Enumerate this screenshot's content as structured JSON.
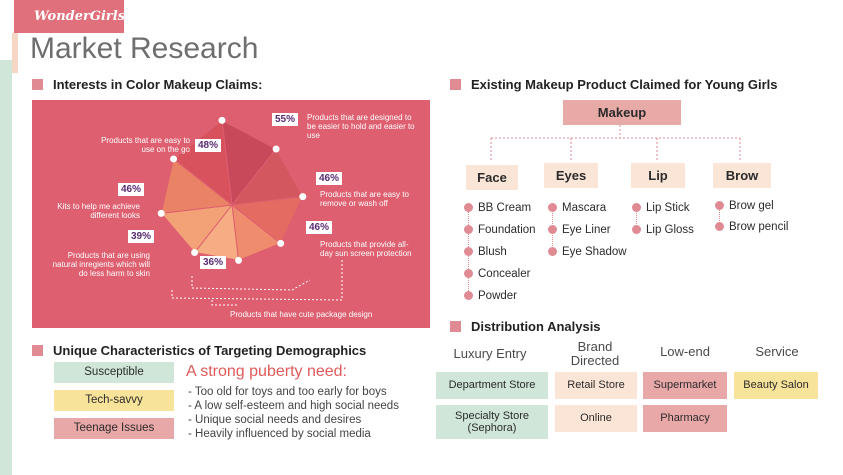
{
  "brand": "WonderGirls",
  "title": "Market Research",
  "interests": {
    "heading": "Interests in Color Makeup Claims:",
    "claims": [
      {
        "pct": "55%",
        "value": 55,
        "label": "Products that are designed to be easier to hold and easier to use"
      },
      {
        "pct": "46%",
        "value": 46,
        "label": "Products that are easy to remove or wash off"
      },
      {
        "pct": "46%",
        "value": 46,
        "label": "Products that provide all-day sun screen protection"
      },
      {
        "pct": "",
        "value": 40,
        "label": "Products that have cute package design"
      },
      {
        "pct": "36%",
        "value": 36,
        "label": ""
      },
      {
        "pct": "39%",
        "value": 39,
        "label": "Products that are using natural inregients which will do less harm to skin"
      },
      {
        "pct": "46%",
        "value": 46,
        "label": "Kits to help me achieve different looks"
      },
      {
        "pct": "48%",
        "value": 48,
        "label": "Products that are easy to use on the go"
      }
    ]
  },
  "existing": {
    "heading": "Existing Makeup Product Claimed for Young Girls",
    "root": "Makeup",
    "categories": [
      {
        "name": "Face",
        "items": [
          "BB Cream",
          "Foundation",
          "Blush",
          "Concealer",
          "Powder"
        ]
      },
      {
        "name": "Eyes",
        "items": [
          "Mascara",
          "Eye Liner",
          "Eye Shadow"
        ]
      },
      {
        "name": "Lip",
        "items": [
          "Lip Stick",
          "Lip Gloss"
        ]
      },
      {
        "name": "Brow",
        "items": [
          "Brow gel",
          "Brow pencil"
        ]
      }
    ]
  },
  "unique": {
    "heading": "Unique Characteristics of Targeting Demographics",
    "tags": [
      "Susceptible",
      "Tech-savvy",
      "Teenage Issues"
    ],
    "need_title": "A strong puberty need:",
    "needs": [
      "- Too old for toys and too early for boys",
      "- A low self-esteem and high social needs",
      "- Unique social needs and desires",
      "- Heavily influenced by social media"
    ]
  },
  "distribution": {
    "heading": "Distribution Analysis",
    "columns": [
      {
        "header": "Luxury Entry",
        "cells": [
          "Department Store",
          "Specialty Store (Sephora)"
        ]
      },
      {
        "header": "Brand Directed",
        "cells": [
          "Retail Store",
          "Online"
        ]
      },
      {
        "header": "Low-end",
        "cells": [
          "Supermarket",
          "Pharmacy"
        ]
      },
      {
        "header": "Service",
        "cells": [
          "Beauty Salon"
        ]
      }
    ]
  },
  "colors": {
    "accent": "#e08a94",
    "panel": "#de5f70",
    "mint": "#cfe6d9",
    "yellow": "#f8e39a",
    "pink": "#e9a8a8",
    "peach": "#fbe5d6",
    "title_red": "#e05a5a"
  }
}
